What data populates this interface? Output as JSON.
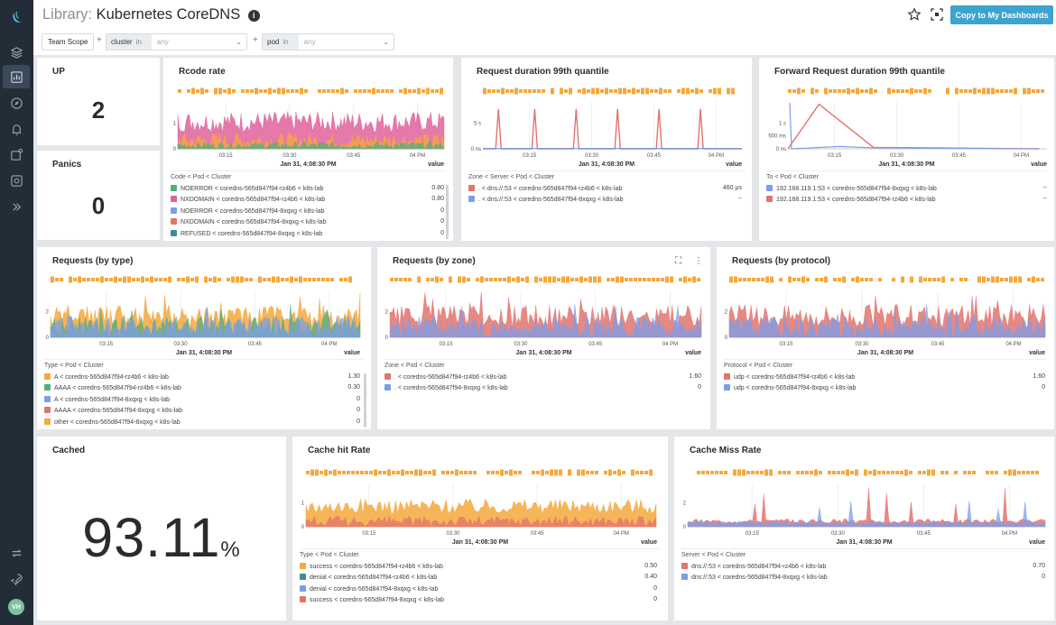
{
  "page": {
    "lib": "Library:",
    "title": "Kubernetes CoreDNS",
    "info": "i",
    "copy_button": "Copy to My Dashboards"
  },
  "filters": {
    "team_scope": "Team Scope",
    "plus": "+",
    "cluster": {
      "key": "cluster",
      "op": "in",
      "placeholder": "any"
    },
    "pod": {
      "key": "pod",
      "op": "in",
      "placeholder": "any"
    }
  },
  "sidebar": {
    "avatar": "VH"
  },
  "colors": {
    "orange": "#f5a83c",
    "pink": "#e0629a",
    "green": "#4fae7c",
    "blue": "#7b9ee8",
    "red": "#e3736d",
    "teal": "#3f8c98",
    "accent": "#3da3cf"
  },
  "panels": {
    "up": {
      "title": "UP",
      "value": "2"
    },
    "panics": {
      "title": "Panics",
      "value": "0"
    },
    "cached": {
      "title": "Cached",
      "value": "93.11",
      "unit": "%"
    },
    "rcode": {
      "title": "Rcode rate",
      "time": "Jan 31, 4:08:30 PM",
      "legend_head": "Code < Pod < Cluster",
      "value_head": "value",
      "rows": [
        {
          "label": "NOERROR < coredns-565d847f94-rz4b6 < k8s-lab",
          "value": "0.80",
          "color": "#4fae7c"
        },
        {
          "label": "NXDOMAIN < coredns-565d847f94-rz4b6 < k8s-lab",
          "value": "0.80",
          "color": "#e0629a"
        },
        {
          "label": "NOERROR < coredns-565d847f94-8xqxg < k8s-lab",
          "value": "0",
          "color": "#7b9ee8"
        },
        {
          "label": "NXDOMAIN < coredns-565d847f94-8xqxg < k8s-lab",
          "value": "0",
          "color": "#e3736d"
        },
        {
          "label": "REFUSED < coredns-565d847f94-8xqxg < k8s-lab",
          "value": "0",
          "color": "#3f8c98"
        }
      ]
    },
    "reqdur": {
      "title": "Request duration 99th quantile",
      "time": "Jan 31, 4:08:30 PM",
      "legend_head": "Zone < Server < Pod < Cluster",
      "value_head": "value",
      "rows": [
        {
          "label": ". < dns://:53 < coredns-565d847f94-rz4b6 < k8s-lab",
          "value": "460 µs",
          "color": "#e3736d"
        },
        {
          "label": ". < dns://:53 < coredns-565d847f94-8xqxg < k8s-lab",
          "value": "--",
          "color": "#7b9ee8"
        }
      ]
    },
    "fwd": {
      "title": "Forward Request duration 99th quantile",
      "time": "Jan 31, 4:08:30 PM",
      "legend_head": "To < Pod < Cluster",
      "value_head": "value",
      "rows": [
        {
          "label": "192.168.119.1:53 < coredns-565d847f94-8xqxg < k8s-lab",
          "value": "--",
          "color": "#7b9ee8"
        },
        {
          "label": "192.168.119.1:53 < coredns-565d847f94-rz4b6 < k8s-lab",
          "value": "--",
          "color": "#e3736d"
        }
      ]
    },
    "bytype": {
      "title": "Requests (by type)",
      "time": "Jan 31, 4:08:30 PM",
      "legend_head": "Type < Pod < Cluster",
      "value_head": "value",
      "rows": [
        {
          "label": "A < coredns-565d847f94-rz4b6 < k8s-lab",
          "value": "1.30",
          "color": "#f5a83c"
        },
        {
          "label": "AAAA < coredns-565d847f94-rz4b6 < k8s-lab",
          "value": "0.30",
          "color": "#4fae7c"
        },
        {
          "label": "A < coredns-565d847f94-8xqxg < k8s-lab",
          "value": "0",
          "color": "#7b9ee8"
        },
        {
          "label": "AAAA < coredns-565d847f94-8xqxg < k8s-lab",
          "value": "0",
          "color": "#e3736d"
        },
        {
          "label": "other < coredns-565d847f94-8xqxg < k8s-lab",
          "value": "0",
          "color": "#f5a83c"
        }
      ]
    },
    "byzone": {
      "title": "Requests (by zone)",
      "time": "Jan 31, 4:08:30 PM",
      "legend_head": "Zone < Pod < Cluster",
      "value_head": "value",
      "rows": [
        {
          "label": ". < coredns-565d847f94-rz4b6 < k8s-lab",
          "value": "1.60",
          "color": "#e3736d"
        },
        {
          "label": ". < coredns-565d847f94-8xqxg < k8s-lab",
          "value": "0",
          "color": "#7b9ee8"
        }
      ]
    },
    "byproto": {
      "title": "Requests (by protocol)",
      "time": "Jan 31, 4:08:30 PM",
      "legend_head": "Protocol < Pod < Cluster",
      "value_head": "value",
      "rows": [
        {
          "label": "udp < coredns-565d847f94-rz4b6 < k8s-lab",
          "value": "1.60",
          "color": "#e3736d"
        },
        {
          "label": "udp < coredns-565d847f94-8xqxg < k8s-lab",
          "value": "0",
          "color": "#7b9ee8"
        }
      ]
    },
    "cachehit": {
      "title": "Cache hit Rate",
      "time": "Jan 31, 4:08:30 PM",
      "legend_head": "Type < Pod < Cluster",
      "value_head": "value",
      "rows": [
        {
          "label": "success < coredns-565d847f94-rz4b6 < k8s-lab",
          "value": "0.50",
          "color": "#f5a83c"
        },
        {
          "label": "denial < coredns-565d847f94-rz4b6 < k8s-lab",
          "value": "0.40",
          "color": "#3f8c98"
        },
        {
          "label": "denial < coredns-565d847f94-8xqxg < k8s-lab",
          "value": "0",
          "color": "#7b9ee8"
        },
        {
          "label": "success < coredns-565d847f94-8xqxg < k8s-lab",
          "value": "0",
          "color": "#e3736d"
        }
      ]
    },
    "cachemiss": {
      "title": "Cache Miss Rate",
      "time": "Jan 31, 4:08:30 PM",
      "legend_head": "Server < Pod < Cluster",
      "value_head": "value",
      "rows": [
        {
          "label": "dns://:53 < coredns-565d847f94-rz4b6 < k8s-lab",
          "value": "0.70",
          "color": "#e3736d"
        },
        {
          "label": "dns://:53 < coredns-565d847f94-8xqxg < k8s-lab",
          "value": "0",
          "color": "#7b9ee8"
        }
      ]
    }
  },
  "chart_data": [
    {
      "id": "rcode",
      "type": "area",
      "x_ticks": [
        "03:15",
        "03:30",
        "03:45",
        "04 PM"
      ],
      "y_ticks": [
        "0",
        "1"
      ],
      "ylim": [
        0,
        1.5
      ],
      "series_colors": [
        "#e0629a",
        "#f5a83c",
        "#4fae7c"
      ]
    },
    {
      "id": "reqdur",
      "type": "line",
      "x_ticks": [
        "03:15",
        "03:30",
        "03:45",
        "04 PM"
      ],
      "y_ticks": [
        "0 ns",
        "5 s"
      ],
      "spikes": [
        "03:07",
        "03:16",
        "03:25",
        "03:35",
        "03:44",
        "03:54"
      ],
      "series_colors": [
        "#e3736d",
        "#7b9ee8"
      ]
    },
    {
      "id": "fwd",
      "type": "line",
      "x_ticks": [
        "03:15",
        "03:30",
        "03:45",
        "04 PM"
      ],
      "y_ticks": [
        "0 ns",
        "500 ms",
        "1 s"
      ],
      "series_colors": [
        "#e3736d",
        "#7b9ee8"
      ]
    },
    {
      "id": "bytype",
      "type": "area",
      "x_ticks": [
        "03:15",
        "03:30",
        "03:45",
        "04 PM"
      ],
      "y_ticks": [
        "0",
        "2"
      ],
      "ylim": [
        0,
        3
      ],
      "series_colors": [
        "#f5a83c",
        "#4fae7c",
        "#7b9ee8"
      ]
    },
    {
      "id": "byzone",
      "type": "area",
      "x_ticks": [
        "03:15",
        "03:30",
        "03:45",
        "04 PM"
      ],
      "y_ticks": [
        "0",
        "2"
      ],
      "ylim": [
        0,
        3
      ],
      "series_colors": [
        "#e3736d",
        "#7b9ee8"
      ]
    },
    {
      "id": "byproto",
      "type": "area",
      "x_ticks": [
        "03:15",
        "03:30",
        "03:45",
        "04 PM"
      ],
      "y_ticks": [
        "0",
        "2"
      ],
      "ylim": [
        0,
        3
      ],
      "series_colors": [
        "#e3736d",
        "#7b9ee8"
      ]
    },
    {
      "id": "cachehit",
      "type": "area",
      "x_ticks": [
        "03:15",
        "03:30",
        "03:45",
        "04 PM"
      ],
      "y_ticks": [
        "0",
        "1"
      ],
      "ylim": [
        0,
        1.3
      ],
      "series_colors": [
        "#f5a83c",
        "#e3736d"
      ]
    },
    {
      "id": "cachemiss",
      "type": "area",
      "x_ticks": [
        "03:15",
        "03:30",
        "03:45",
        "04 PM"
      ],
      "y_ticks": [
        "0",
        "2"
      ],
      "ylim": [
        0,
        3
      ],
      "series_colors": [
        "#e3736d",
        "#7b9ee8"
      ]
    }
  ]
}
